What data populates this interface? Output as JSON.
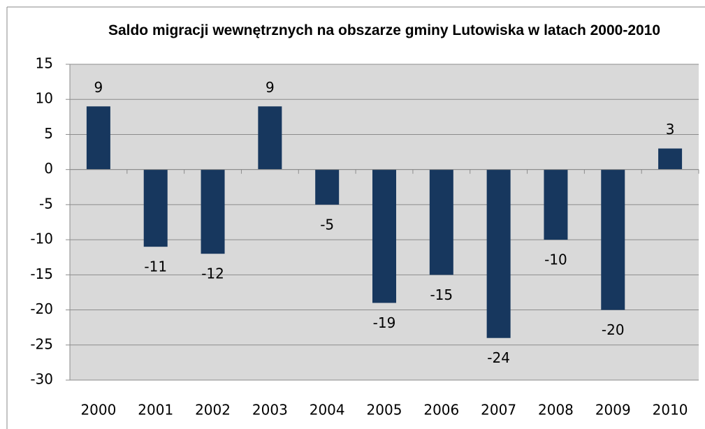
{
  "chart_data": {
    "type": "bar",
    "title": "Saldo migracji wewnętrznych na obszarze gminy Lutowiska w latach 2000-2010",
    "categories": [
      "2000",
      "2001",
      "2002",
      "2003",
      "2004",
      "2005",
      "2006",
      "2007",
      "2008",
      "2009",
      "2010"
    ],
    "values": [
      9,
      -11,
      -12,
      9,
      -5,
      -19,
      -15,
      -24,
      -10,
      -20,
      3
    ],
    "color": "#17375e",
    "ylim": [
      -30,
      15
    ],
    "yticks": [
      -30,
      -25,
      -20,
      -15,
      -10,
      -5,
      0,
      5,
      10,
      15
    ],
    "grid": true
  }
}
